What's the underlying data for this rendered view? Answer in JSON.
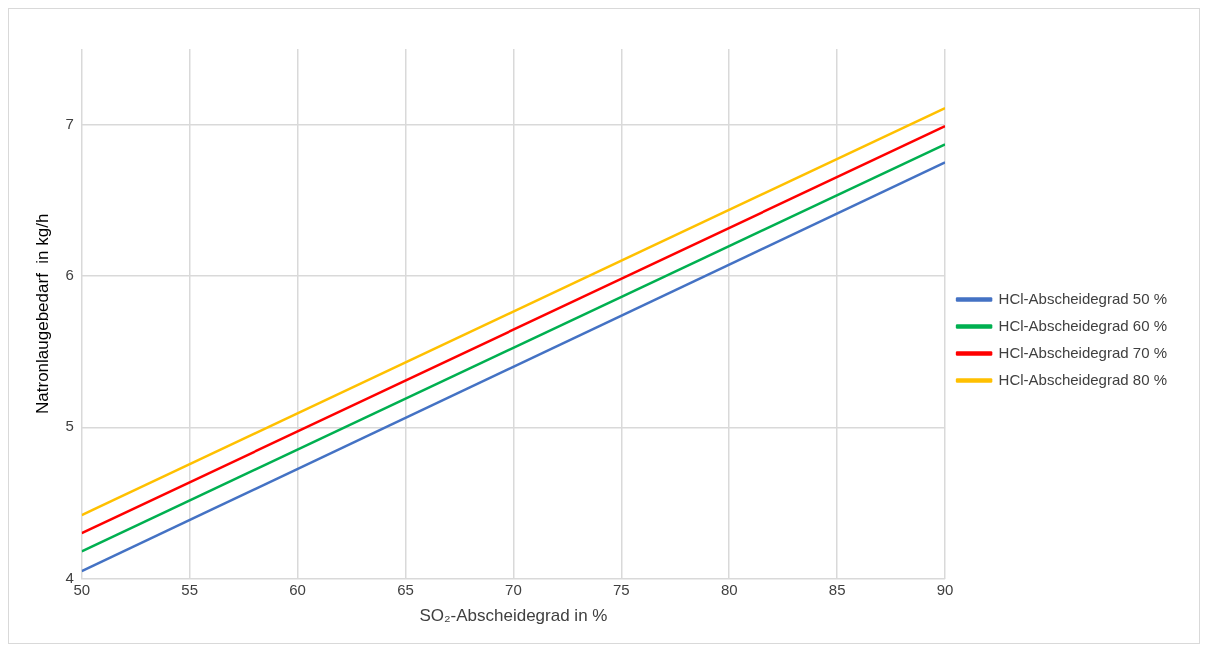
{
  "chart_data": {
    "type": "line",
    "xlabel": "SO₂-Abscheidegrad in %",
    "ylabel": "Natronlaugebedarf  in kg/h",
    "x": [
      50,
      90
    ],
    "series": [
      {
        "name": "HCl-Abscheidegrad 50 %",
        "color": "#4472c4",
        "values": [
          4.05,
          6.75
        ]
      },
      {
        "name": "HCl-Abscheidegrad 60 %",
        "color": "#00b050",
        "values": [
          4.18,
          6.87
        ]
      },
      {
        "name": "HCl-Abscheidegrad 70 %",
        "color": "#ff0000",
        "values": [
          4.3,
          6.99
        ]
      },
      {
        "name": "HCl-Abscheidegrad 80 %",
        "color": "#ffc000",
        "values": [
          4.42,
          7.11
        ]
      }
    ],
    "xlim": [
      50,
      90
    ],
    "xticks": [
      50,
      55,
      60,
      65,
      70,
      75,
      80,
      85,
      90
    ],
    "ylim": [
      4,
      7.5
    ],
    "yticks": [
      4,
      5,
      6,
      7
    ],
    "grid": true,
    "legend": "right",
    "marker": "none",
    "line_style": "solid"
  }
}
